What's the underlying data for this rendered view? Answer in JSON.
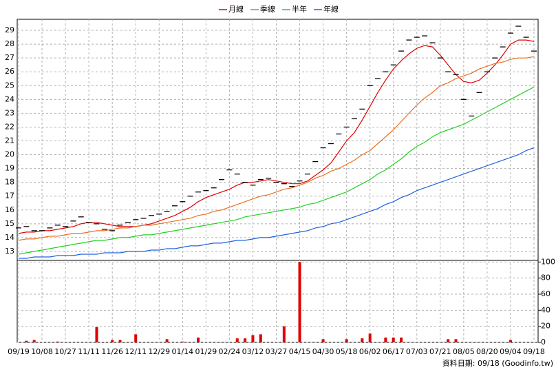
{
  "chart_data": [
    {
      "type": "line",
      "values": [
        14.7,
        14.8,
        14.5,
        14.5,
        14.7,
        14.9,
        14.8,
        15.2,
        15.5,
        15.1,
        15.0,
        14.6,
        14.5,
        14.9,
        15.1,
        15.3,
        15.4,
        15.6,
        15.7,
        15.9,
        16.3,
        16.6,
        17.0,
        17.3,
        17.4,
        17.6,
        18.2,
        18.9,
        18.6,
        18.0,
        17.8,
        18.2,
        18.3,
        18.0,
        17.9,
        17.7,
        18.1,
        18.6,
        19.5,
        20.5,
        20.8,
        21.5,
        22.0,
        22.6,
        23.3,
        25.0,
        25.5,
        26.0,
        26.5,
        27.5,
        28.3,
        28.5,
        28.6,
        28.1,
        27.0,
        26.0,
        25.8,
        24.0,
        22.8,
        24.5,
        26.0,
        27.0,
        27.8,
        28.8,
        29.3,
        28.5,
        27.5
      ],
      "series": [
        {
          "name": "月線",
          "color": "#e00000",
          "values": [
            14.3,
            14.4,
            14.4,
            14.5,
            14.5,
            14.6,
            14.7,
            14.8,
            15.0,
            15.1,
            15.1,
            15.0,
            14.9,
            14.8,
            14.8,
            14.8,
            14.9,
            15.0,
            15.2,
            15.4,
            15.6,
            15.9,
            16.2,
            16.6,
            16.9,
            17.1,
            17.3,
            17.5,
            17.8,
            18.0,
            18.0,
            18.1,
            18.2,
            18.1,
            18.0,
            17.9,
            17.9,
            18.1,
            18.5,
            18.9,
            19.4,
            20.2,
            21.0,
            21.6,
            22.5,
            23.5,
            24.5,
            25.4,
            26.2,
            26.8,
            27.3,
            27.7,
            27.9,
            27.8,
            27.2,
            26.5,
            25.8,
            25.3,
            25.2,
            25.4,
            25.9,
            26.5,
            27.2,
            28.0,
            28.3,
            28.3,
            28.2
          ]
        },
        {
          "name": "季線",
          "color": "#e87020",
          "values": [
            13.8,
            13.9,
            13.9,
            14.0,
            14.1,
            14.1,
            14.2,
            14.3,
            14.3,
            14.4,
            14.5,
            14.5,
            14.6,
            14.7,
            14.7,
            14.8,
            14.9,
            14.9,
            15.0,
            15.1,
            15.2,
            15.3,
            15.4,
            15.6,
            15.7,
            15.9,
            16.0,
            16.2,
            16.4,
            16.6,
            16.8,
            17.0,
            17.1,
            17.3,
            17.5,
            17.6,
            17.8,
            18.0,
            18.3,
            18.5,
            18.8,
            19.0,
            19.3,
            19.6,
            20.0,
            20.3,
            20.8,
            21.3,
            21.8,
            22.4,
            23.0,
            23.6,
            24.1,
            24.5,
            25.0,
            25.2,
            25.5,
            25.7,
            25.9,
            26.2,
            26.4,
            26.6,
            26.7,
            26.9,
            27.0,
            27.0,
            27.1
          ]
        },
        {
          "name": "半年",
          "color": "#20d020",
          "values": [
            12.8,
            12.9,
            13.0,
            13.1,
            13.2,
            13.3,
            13.4,
            13.5,
            13.6,
            13.7,
            13.8,
            13.8,
            13.9,
            14.0,
            14.0,
            14.1,
            14.2,
            14.2,
            14.3,
            14.4,
            14.5,
            14.6,
            14.7,
            14.8,
            14.9,
            15.0,
            15.1,
            15.2,
            15.3,
            15.5,
            15.6,
            15.7,
            15.8,
            15.9,
            16.0,
            16.1,
            16.2,
            16.4,
            16.5,
            16.7,
            16.9,
            17.1,
            17.3,
            17.6,
            17.9,
            18.2,
            18.6,
            18.9,
            19.3,
            19.7,
            20.2,
            20.6,
            20.9,
            21.3,
            21.6,
            21.8,
            22.0,
            22.2,
            22.5,
            22.8,
            23.1,
            23.4,
            23.7,
            24.0,
            24.3,
            24.6,
            24.9
          ]
        },
        {
          "name": "年線",
          "color": "#2060e0",
          "values": [
            12.5,
            12.5,
            12.6,
            12.6,
            12.6,
            12.7,
            12.7,
            12.7,
            12.8,
            12.8,
            12.8,
            12.9,
            12.9,
            12.9,
            13.0,
            13.0,
            13.0,
            13.1,
            13.1,
            13.2,
            13.2,
            13.3,
            13.4,
            13.4,
            13.5,
            13.6,
            13.6,
            13.7,
            13.8,
            13.8,
            13.9,
            14.0,
            14.0,
            14.1,
            14.2,
            14.3,
            14.4,
            14.5,
            14.7,
            14.8,
            15.0,
            15.1,
            15.3,
            15.5,
            15.7,
            15.9,
            16.1,
            16.4,
            16.6,
            16.9,
            17.1,
            17.4,
            17.6,
            17.8,
            18.0,
            18.2,
            18.4,
            18.6,
            18.8,
            19.0,
            19.2,
            19.4,
            19.6,
            19.8,
            20.0,
            20.3,
            20.5
          ]
        }
      ],
      "ylim": [
        12.35,
        29.8
      ],
      "yticks": [
        13,
        14,
        15,
        16,
        17,
        18,
        19,
        20,
        21,
        22,
        23,
        24,
        25,
        26,
        27,
        28,
        29
      ],
      "grid": true,
      "legend": "top"
    },
    {
      "type": "bar",
      "categories": [
        "09/19",
        null,
        null,
        "10/08",
        null,
        null,
        "10/27",
        null,
        null,
        "11/11",
        null,
        null,
        "11/26",
        null,
        null,
        "12/11",
        null,
        null,
        "12/29",
        null,
        null,
        "01/14",
        null,
        null,
        "01/29",
        null,
        null,
        "02/24",
        null,
        null,
        "03/12",
        null,
        null,
        "03/27",
        null,
        null,
        "04/15",
        null,
        null,
        "04/30",
        null,
        null,
        "05/18",
        null,
        null,
        "06/02",
        null,
        null,
        "06/17",
        null,
        null,
        "07/03",
        null,
        null,
        "07/21",
        null,
        null,
        "08/05",
        null,
        null,
        "08/20",
        null,
        null,
        "09/04",
        null,
        null,
        "09/18"
      ],
      "values": [
        0,
        2,
        3,
        0,
        0,
        1,
        0,
        0,
        0,
        0,
        19,
        0,
        3,
        3,
        0,
        10,
        0,
        0,
        0,
        4,
        0,
        1,
        0,
        6,
        0,
        0,
        0,
        0,
        5,
        5,
        9,
        10,
        0,
        0,
        20,
        0,
        100,
        0,
        0,
        4,
        0,
        0,
        4,
        0,
        5,
        11,
        0,
        6,
        6,
        6,
        0,
        0,
        0,
        0,
        0,
        4,
        4,
        0,
        0,
        0,
        0,
        0,
        0,
        3,
        0,
        0,
        0
      ],
      "color": "#e00000",
      "ylim": [
        0,
        102
      ],
      "yticks": [
        0,
        20,
        40,
        60,
        80,
        100
      ],
      "grid": true
    }
  ],
  "footer": "資料日期: 09/18 (Goodinfo.tw)"
}
